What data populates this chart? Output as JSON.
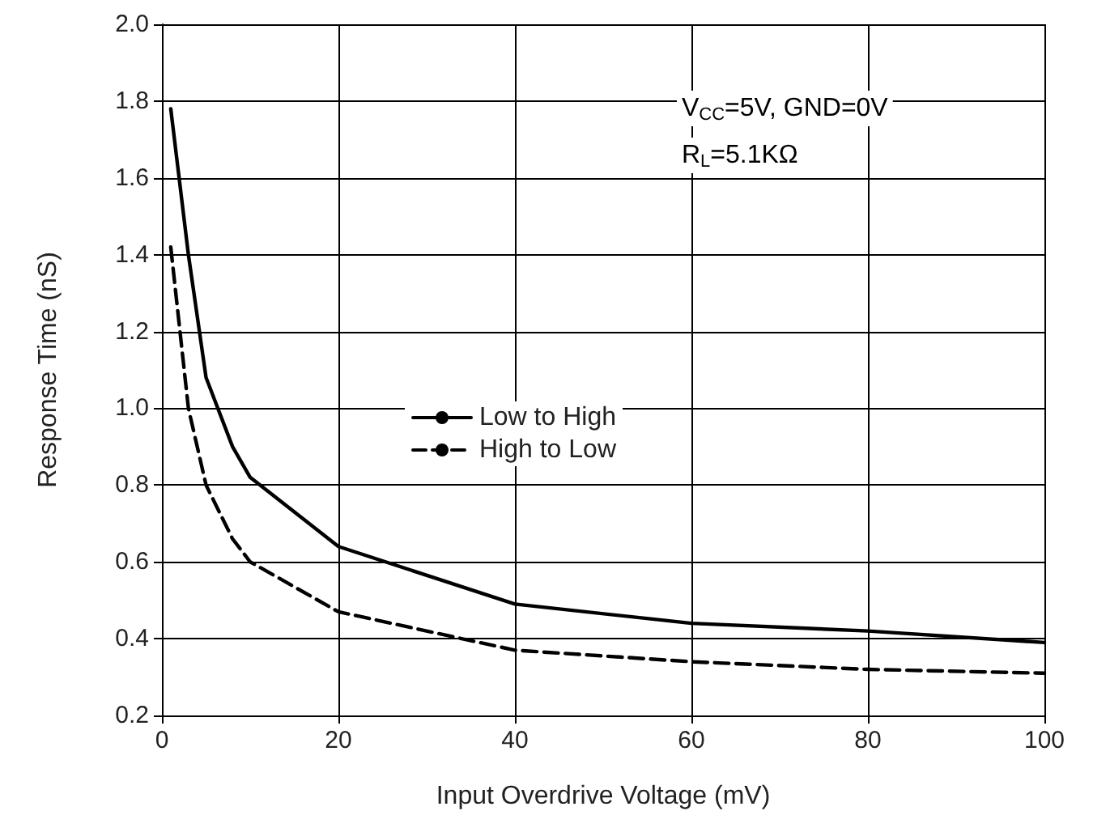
{
  "chart_data": {
    "type": "line",
    "xlabel": "Input Overdrive Voltage (mV)",
    "ylabel": "Response Time (nS)",
    "annotations": [
      "V$_{CC}$=5V, GND=0V",
      "R$_{L}$=5.1KΩ"
    ],
    "xlim": [
      0,
      100
    ],
    "xticks": [
      0,
      20,
      40,
      60,
      80,
      100
    ],
    "ylim": [
      0.2,
      2.0
    ],
    "yticks": [
      0.2,
      0.4,
      0.6,
      0.8,
      {
        "value": 1,
        "label": "1.0"
      },
      1.2,
      1.4,
      1.6,
      1.8,
      {
        "value": 2,
        "label": "2.0"
      }
    ],
    "grid": true,
    "legend": "center",
    "marker": "none",
    "series": [
      {
        "name": "Low to High",
        "color": "#000000",
        "line_style": "solid",
        "x": [
          1,
          3,
          5,
          8,
          10,
          20,
          40,
          60,
          80,
          100
        ],
        "values": [
          1.78,
          1.4,
          1.08,
          0.9,
          0.82,
          0.64,
          0.49,
          0.44,
          0.42,
          0.39
        ]
      },
      {
        "name": "High to Low",
        "color": "#000000",
        "line_style": "dashed",
        "x": [
          1,
          3,
          5,
          8,
          10,
          20,
          40,
          60,
          80,
          100
        ],
        "values": [
          1.42,
          1.0,
          0.8,
          0.66,
          0.6,
          0.47,
          0.37,
          0.34,
          0.32,
          0.31
        ]
      }
    ]
  }
}
